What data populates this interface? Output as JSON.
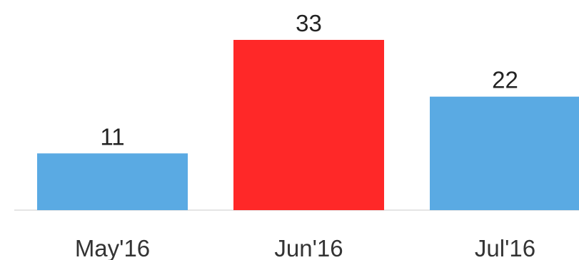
{
  "chart_data": {
    "type": "bar",
    "categories": [
      "May'16",
      "Jun'16",
      "Jul'16"
    ],
    "values": [
      11,
      33,
      22
    ],
    "data_labels": [
      "11",
      "33",
      "22"
    ],
    "bar_colors": [
      "#5aaae3",
      "#ff2828",
      "#5aaae3"
    ],
    "axis_color": "#e5e5e5",
    "ylim": [
      0,
      33
    ],
    "grid": false,
    "legend": "none"
  }
}
